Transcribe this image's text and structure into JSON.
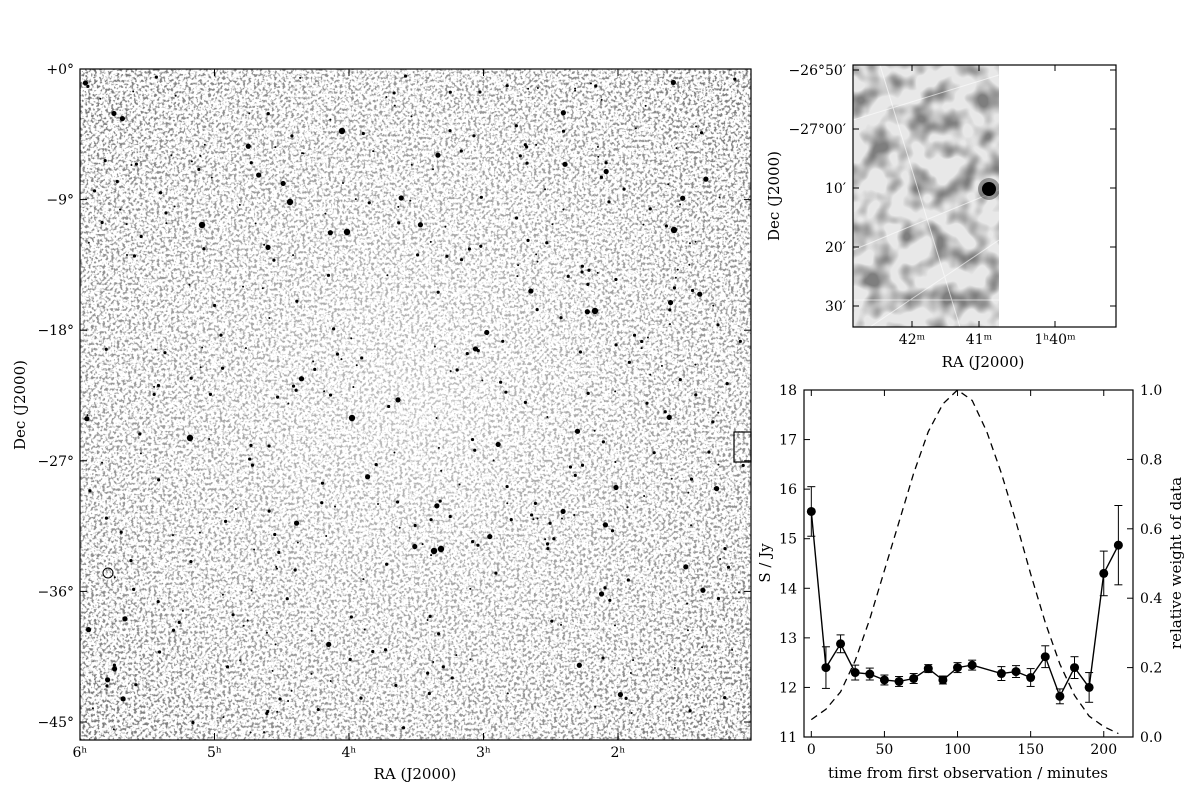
{
  "chart_data": [
    {
      "type": "heatmap",
      "xlabel": "RA (J2000)",
      "ylabel": "Dec (J2000)",
      "x_ticks": [
        "6ʰ",
        "5ʰ",
        "4ʰ",
        "3ʰ",
        "2ʰ"
      ],
      "y_ticks": [
        "+0°",
        "−9°",
        "−18°",
        "−27°",
        "−36°",
        "−45°"
      ],
      "colormap": "grayscale",
      "annotations": [
        "small rectangle marking zoomed region near right edge at Dec −27°"
      ]
    },
    {
      "type": "heatmap",
      "xlabel": "RA (J2000)",
      "ylabel": "Dec (J2000)",
      "x_ticks": [
        "42ᵐ",
        "41ᵐ",
        "1ʰ40ᵐ"
      ],
      "y_ticks": [
        "−26°50′",
        "−27°00′",
        "10′",
        "20′",
        "30′"
      ],
      "colormap": "grayscale"
    },
    {
      "type": "line",
      "xlabel": "time from first observation / minutes",
      "ylabel": "S / Jy",
      "y2label": "relative weight of data",
      "xlim": [
        -5,
        220
      ],
      "ylim": [
        11,
        18
      ],
      "y2lim": [
        0,
        1
      ],
      "x_ticks": [
        0,
        50,
        100,
        150,
        200
      ],
      "y_ticks": [
        11,
        12,
        13,
        14,
        15,
        16,
        17,
        18
      ],
      "y2_ticks": [
        "0.0",
        "0.2",
        "0.4",
        "0.6",
        "0.8",
        "1.0"
      ],
      "series": [
        {
          "style": "solid line with circle markers and error bars",
          "x": [
            0,
            10,
            20,
            30,
            40,
            50,
            60,
            70,
            80,
            90,
            100,
            110,
            130,
            140,
            150,
            160,
            170,
            180,
            190,
            200,
            210
          ],
          "y": [
            15.55,
            12.4,
            12.88,
            12.3,
            12.27,
            12.15,
            12.12,
            12.18,
            12.38,
            12.15,
            12.4,
            12.45,
            12.28,
            12.32,
            12.2,
            12.62,
            11.82,
            12.4,
            12.0,
            14.3,
            14.87
          ],
          "err": [
            0.5,
            0.42,
            0.18,
            0.15,
            0.12,
            0.1,
            0.1,
            0.1,
            0.08,
            0.08,
            0.1,
            0.1,
            0.14,
            0.12,
            0.18,
            0.22,
            0.15,
            0.22,
            0.3,
            0.45,
            0.8
          ]
        },
        {
          "style": "dashed line, right axis",
          "axis": "right",
          "x": [
            0,
            10,
            20,
            30,
            40,
            50,
            60,
            70,
            80,
            90,
            100,
            110,
            120,
            130,
            140,
            150,
            160,
            170,
            180,
            190,
            200,
            210
          ],
          "y": [
            0.05,
            0.08,
            0.13,
            0.22,
            0.34,
            0.48,
            0.62,
            0.76,
            0.88,
            0.96,
            1.0,
            0.97,
            0.88,
            0.76,
            0.62,
            0.47,
            0.33,
            0.21,
            0.12,
            0.06,
            0.03,
            0.01
          ]
        }
      ]
    }
  ]
}
